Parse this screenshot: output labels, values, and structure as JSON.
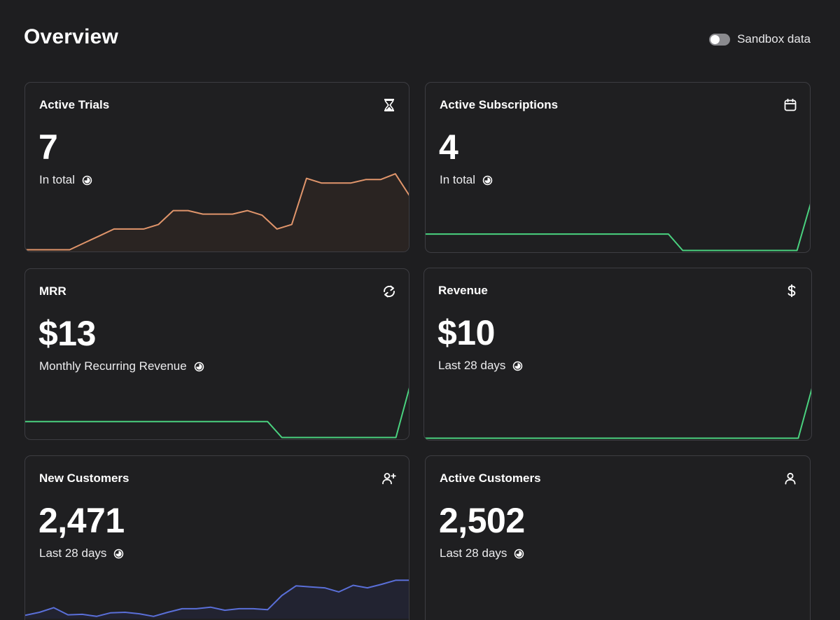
{
  "header": {
    "title": "Overview",
    "sandbox_label": "Sandbox data"
  },
  "colors": {
    "background": "#1e1e20",
    "card_border": "#3d3d42",
    "trials_line": "#e0956b",
    "green_line": "#4ad27f",
    "blue_line": "#5a6fd8"
  },
  "cards": [
    {
      "title": "Active Trials",
      "value": "7",
      "subtitle": "In total",
      "icon": "hourglass-icon",
      "sparkline": [
        0,
        0,
        0,
        0,
        0.6,
        1.2,
        1.8,
        1.8,
        1.8,
        2.2,
        3.4,
        3.4,
        3.1,
        3.1,
        3.1,
        3.4,
        3.0,
        1.8,
        2.2,
        6.2,
        5.8,
        5.8,
        5.8,
        6.1,
        6.1,
        6.6,
        4.6
      ],
      "sparkline_max": 7,
      "line_color": "#e0956b",
      "fill_color": "#2a2422"
    },
    {
      "title": "Active Subscriptions",
      "value": "4",
      "subtitle": "In total",
      "icon": "calendar-icon",
      "sparkline": [
        1,
        1,
        1,
        1,
        1,
        1,
        1,
        1,
        1,
        1,
        1,
        1,
        1,
        1,
        1,
        1,
        1,
        1,
        0,
        0,
        0,
        0,
        0,
        0,
        0,
        0,
        0,
        3
      ],
      "sparkline_max": 3.2,
      "line_color": "#4ad27f",
      "fill_color": ""
    },
    {
      "title": "MRR",
      "value": "$13",
      "subtitle": "Monthly Recurring Revenue",
      "icon": "recurring-icon",
      "sparkline": [
        1,
        1,
        1,
        1,
        1,
        1,
        1,
        1,
        1,
        1,
        1,
        1,
        1,
        1,
        1,
        1,
        1,
        1,
        0,
        0,
        0,
        0,
        0,
        0,
        0,
        0,
        0,
        3.3
      ],
      "sparkline_max": 3.3,
      "line_color": "#4ad27f",
      "fill_color": ""
    },
    {
      "title": "Revenue",
      "value": "$10",
      "subtitle": "Last 28 days",
      "icon": "dollar-icon",
      "sparkline": [
        0,
        0,
        0,
        0,
        0,
        0,
        0,
        0,
        0,
        0,
        0,
        0,
        0,
        0,
        0,
        0,
        0,
        0,
        0,
        0,
        0,
        0,
        0,
        0,
        0,
        0,
        0,
        3.3
      ],
      "sparkline_max": 3.3,
      "line_color": "#4ad27f",
      "fill_color": ""
    },
    {
      "title": "New Customers",
      "value": "2,471",
      "subtitle": "Last 28 days",
      "icon": "add-user-icon",
      "sparkline": [
        0.3,
        0.9,
        1.8,
        0.4,
        0.5,
        0.1,
        0.8,
        0.9,
        0.6,
        0.1,
        0.9,
        1.6,
        1.6,
        1.9,
        1.3,
        1.6,
        1.6,
        1.4,
        4.2,
        6.1,
        5.9,
        5.7,
        4.9,
        6.2,
        5.7,
        6.4,
        7.2,
        7.2
      ],
      "sparkline_max": 8.4,
      "line_color": "#5a6fd8",
      "fill_color": "#222331"
    },
    {
      "title": "Active Customers",
      "value": "2,502",
      "subtitle": "Last 28 days",
      "icon": "user-icon",
      "sparkline": [],
      "sparkline_max": 1,
      "line_color": "#5a6fd8",
      "fill_color": ""
    }
  ]
}
